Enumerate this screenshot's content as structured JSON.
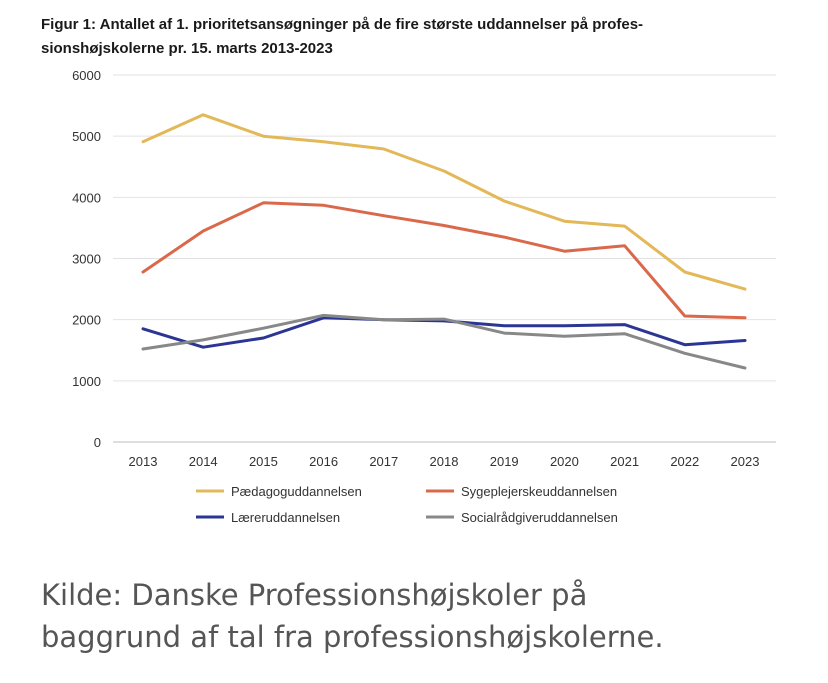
{
  "title_lines": [
    "Figur 1: Antallet af 1. prioritetsansøgninger på de fire største uddannelser på profes-",
    "sionshøjskolerne pr. 15. marts 2013-2023"
  ],
  "source_lines": [
    "Kilde: Danske Professionshøjskoler på",
    "baggrund af tal fra professionshøjskolerne."
  ],
  "chart_data": {
    "type": "line",
    "title": "Figur 1: Antallet af 1. prioritetsansøgninger på de fire største uddannelser på professionshøjskolerne pr. 15. marts 2013-2023",
    "xlabel": "",
    "ylabel": "",
    "ylim": [
      0,
      6000
    ],
    "yticks": [
      0,
      1000,
      2000,
      3000,
      4000,
      5000,
      6000
    ],
    "grid": "horizontal",
    "legend_position": "bottom",
    "x": [
      2013,
      2014,
      2015,
      2016,
      2017,
      2018,
      2019,
      2020,
      2021,
      2022,
      2023
    ],
    "series": [
      {
        "name": "Pædagoguddannelsen",
        "color": "#E2B858",
        "values": [
          4910,
          5350,
          5000,
          4910,
          4790,
          4430,
          3940,
          3610,
          3530,
          2780,
          2500
        ]
      },
      {
        "name": "Sygeplejerskeuddannelsen",
        "color": "#D9694A",
        "values": [
          2780,
          3450,
          3910,
          3870,
          3700,
          3540,
          3350,
          3120,
          3210,
          2060,
          2030
        ]
      },
      {
        "name": "Læreruddannelsen",
        "color": "#2B3594",
        "values": [
          1850,
          1550,
          1700,
          2030,
          2000,
          1980,
          1900,
          1900,
          1920,
          1590,
          1660
        ]
      },
      {
        "name": "Socialrådgiveruddannelsen",
        "color": "#888888",
        "values": [
          1520,
          1670,
          1860,
          2070,
          2000,
          2010,
          1780,
          1730,
          1770,
          1450,
          1210
        ]
      }
    ]
  }
}
